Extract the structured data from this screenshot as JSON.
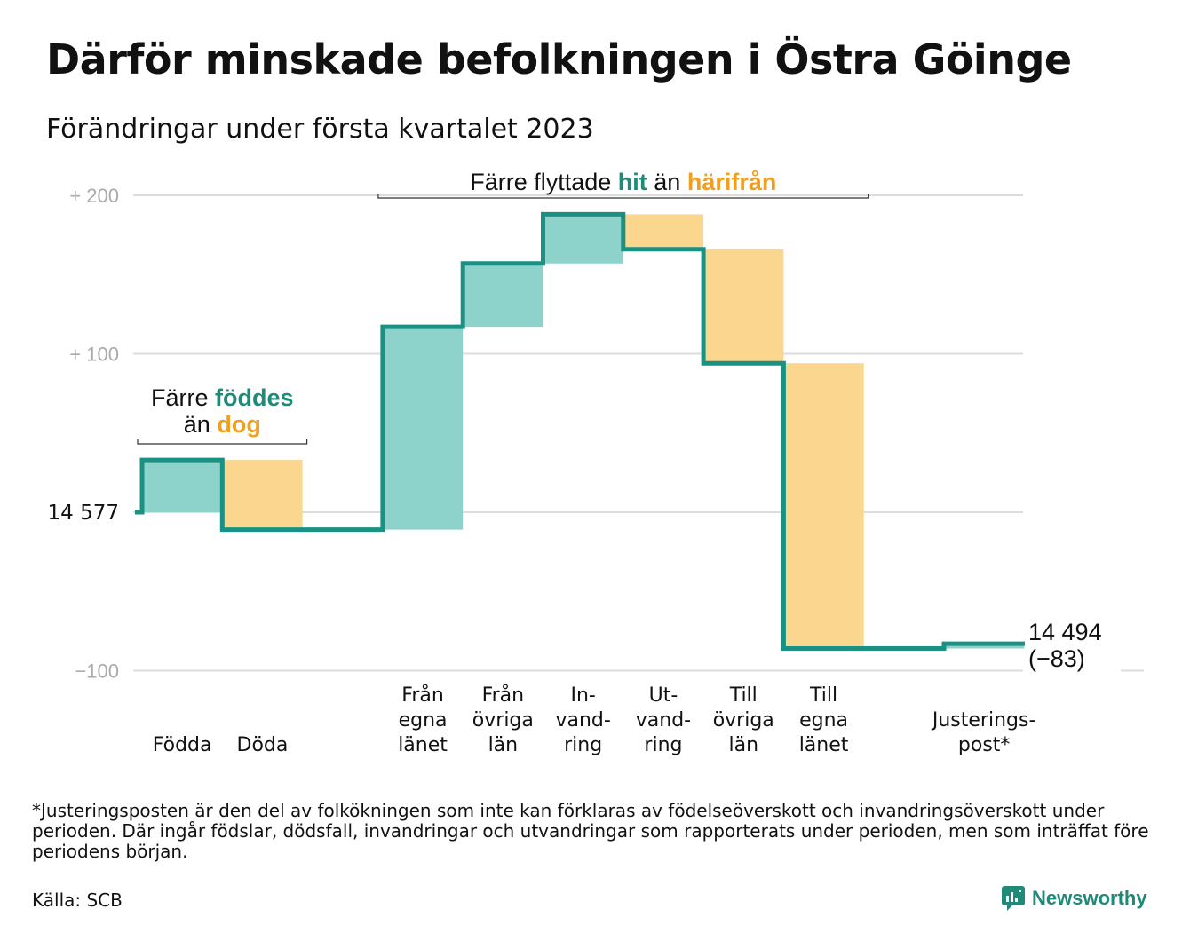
{
  "title": "Därför minskade befolkningen i Östra Göinge",
  "subtitle": "Förändringar under första kvartalet 2023",
  "colors": {
    "increase": "#8dd3cb",
    "decrease": "#fad68f",
    "line": "#1a9182",
    "teal_text": "#1f8a78",
    "orange_text": "#f0a020",
    "grid": "#dddddd"
  },
  "chart_data": {
    "type": "waterfall",
    "start_value": 14577,
    "start_label": "14 577",
    "end_value": 14494,
    "end_label": "14 494",
    "end_change_label": "(−83)",
    "ylim": [
      -100,
      200
    ],
    "yticks": [
      {
        "value": 200,
        "label": "+ 200"
      },
      {
        "value": 100,
        "label": "+ 100"
      },
      {
        "value": -100,
        "label": "−100"
      }
    ],
    "steps": [
      {
        "category": "Födda",
        "label_lines": [
          "Födda"
        ],
        "change": 33,
        "kind": "increase"
      },
      {
        "category": "Döda",
        "label_lines": [
          "Döda"
        ],
        "change": -44,
        "kind": "decrease"
      },
      {
        "category": "",
        "label_lines": [],
        "change": 0,
        "kind": "none"
      },
      {
        "category": "Från egna länet",
        "label_lines": [
          "Från",
          "egna",
          "länet"
        ],
        "change": 128,
        "kind": "increase"
      },
      {
        "category": "Från övriga län",
        "label_lines": [
          "Från",
          "övriga",
          "län"
        ],
        "change": 40,
        "kind": "increase"
      },
      {
        "category": "Invandring",
        "label_lines": [
          "In-",
          "vand-",
          "ring"
        ],
        "change": 31,
        "kind": "increase"
      },
      {
        "category": "Utvandring",
        "label_lines": [
          "Ut-",
          "vand-",
          "ring"
        ],
        "change": -22,
        "kind": "decrease"
      },
      {
        "category": "Till övriga län",
        "label_lines": [
          "Till",
          "övriga",
          "län"
        ],
        "change": -72,
        "kind": "decrease"
      },
      {
        "category": "Till egna länet",
        "label_lines": [
          "Till",
          "egna",
          "länet"
        ],
        "change": -180,
        "kind": "decrease"
      },
      {
        "category": "",
        "label_lines": [],
        "change": 0,
        "kind": "none"
      },
      {
        "category": "Justeringspost*",
        "label_lines": [
          "Justerings-",
          "post*"
        ],
        "change": 3,
        "kind": "increase"
      }
    ],
    "annotations": [
      {
        "parts": [
          {
            "text": "Färre ",
            "color": ""
          },
          {
            "text": "föddes",
            "color": "teal"
          }
        ],
        "parts2": [
          {
            "text": "än ",
            "color": ""
          },
          {
            "text": "dog",
            "color": "orange"
          }
        ],
        "span": [
          0,
          1
        ]
      },
      {
        "parts": [
          {
            "text": "Färre flyttade ",
            "color": ""
          },
          {
            "text": "hit",
            "color": "teal"
          },
          {
            "text": " än ",
            "color": ""
          },
          {
            "text": "härifrån",
            "color": "orange"
          }
        ],
        "parts2": [],
        "span": [
          3,
          8
        ]
      }
    ]
  },
  "footnote": "*Justeringsposten är den del av folkökningen som inte kan förklaras av födelseöverskott och invandringsöverskott under perioden. Där ingår födslar, dödsfall, invandringar och utvandringar som rapporterats under perioden, men som inträffat före periodens början.",
  "source": "Källa: SCB",
  "brand": "Newsworthy",
  "brand_icon": "newsworthy-chart-icon"
}
